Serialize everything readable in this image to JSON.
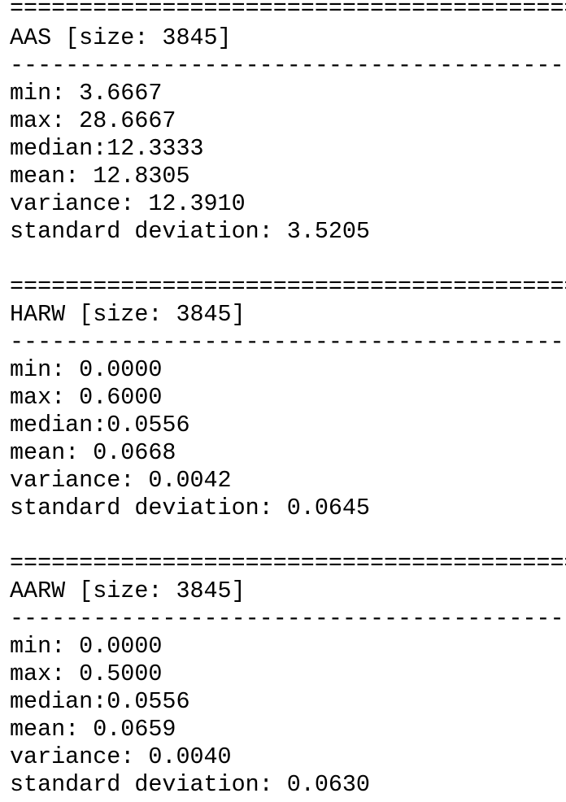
{
  "sections": [
    {
      "separator_top": "==========================================",
      "header": "AAS [size: 3845]",
      "separator_mid": "------------------------------------------",
      "stats": {
        "min": "min: 3.6667",
        "max": "max: 28.6667",
        "median": "median:12.3333",
        "mean": "mean: 12.8305",
        "variance": "variance: 12.3910",
        "std": "standard deviation: 3.5205"
      }
    },
    {
      "separator_top": "==========================================",
      "header": "HARW [size: 3845]",
      "separator_mid": "------------------------------------------",
      "stats": {
        "min": "min: 0.0000",
        "max": "max: 0.6000",
        "median": "median:0.0556",
        "mean": "mean: 0.0668",
        "variance": "variance: 0.0042",
        "std": "standard deviation: 0.0645"
      }
    },
    {
      "separator_top": "==========================================",
      "header": "AARW [size: 3845]",
      "separator_mid": "------------------------------------------",
      "stats": {
        "min": "min: 0.0000",
        "max": "max: 0.5000",
        "median": "median:0.0556",
        "mean": "mean: 0.0659",
        "variance": "variance: 0.0040",
        "std": "standard deviation: 0.0630"
      }
    }
  ]
}
